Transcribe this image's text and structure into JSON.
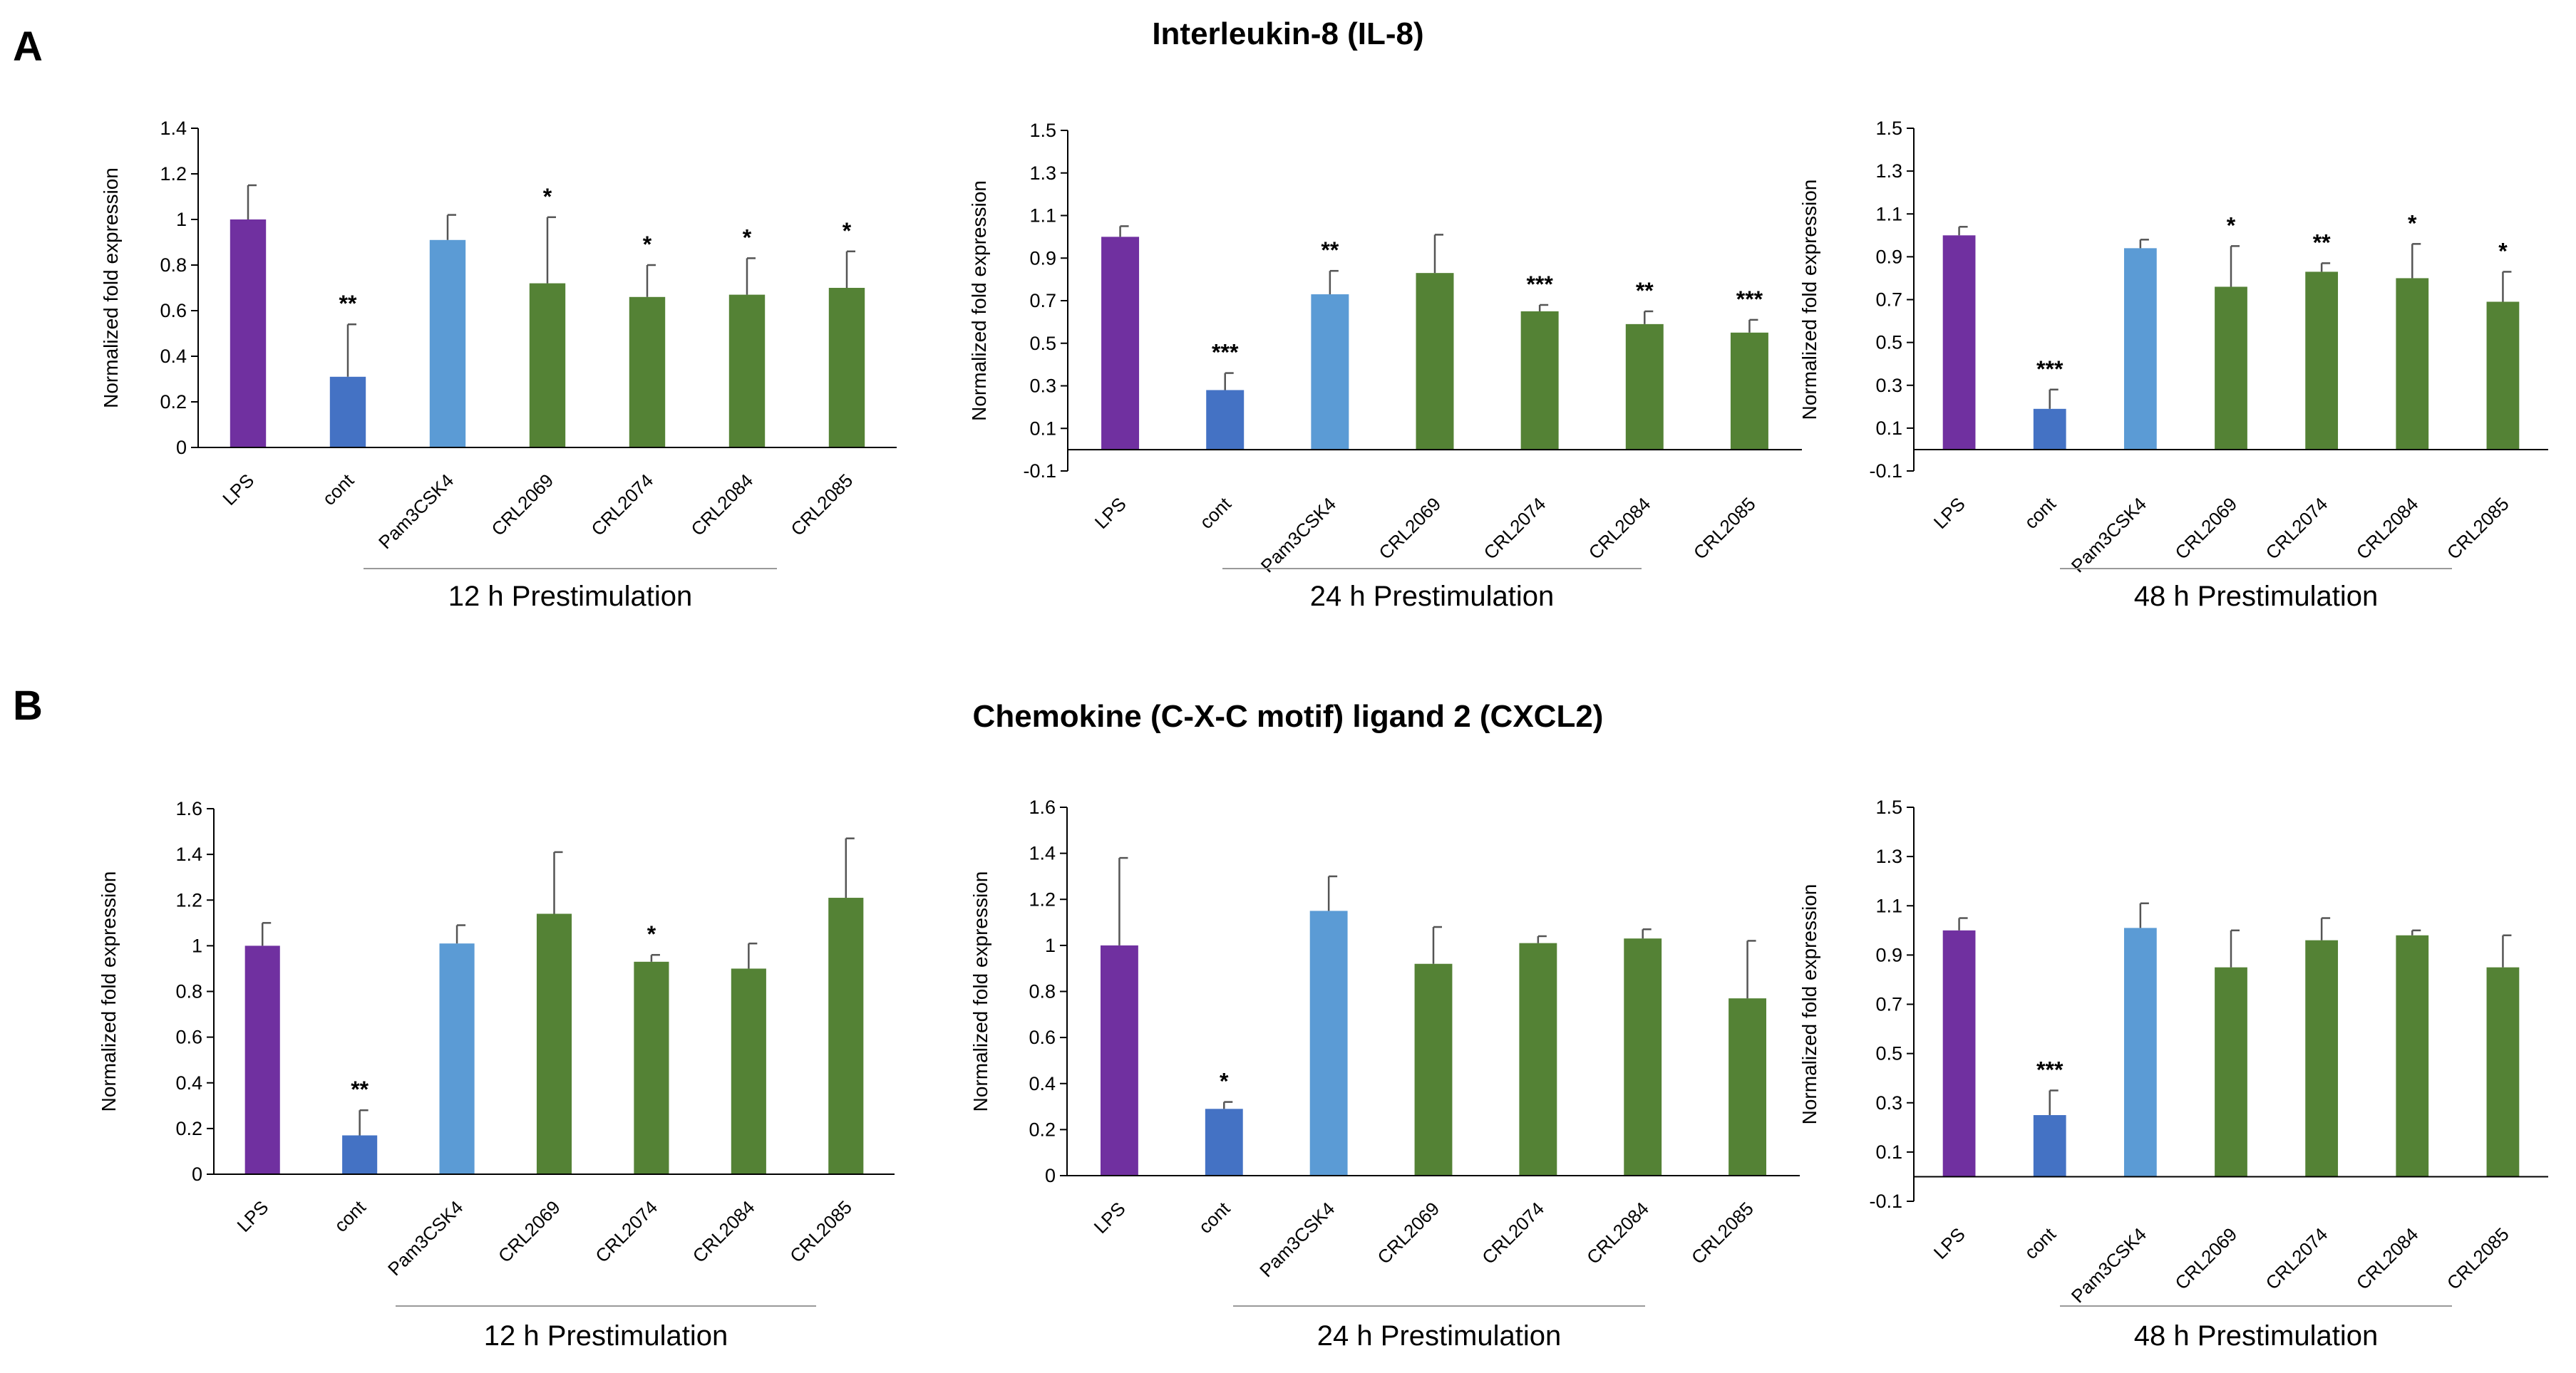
{
  "panels": {
    "A": {
      "letter": "A",
      "title": "Interleukin-8 (IL-8)"
    },
    "B": {
      "letter": "B",
      "title": "Chemokine (C-X-C motif) ligand 2 (CXCL2)"
    }
  },
  "colors": {
    "purple": "#7030a0",
    "darkblue": "#4472c4",
    "lightblue": "#5b9bd5",
    "green": "#548235"
  },
  "chart_data": [
    {
      "type": "bar",
      "panel": "A",
      "categories": [
        "LPS",
        "cont",
        "Pam3CSK4",
        "CRL2069",
        "CRL2074",
        "CRL2084",
        "CRL2085"
      ],
      "values": [
        1.0,
        0.31,
        0.91,
        0.72,
        0.66,
        0.67,
        0.7
      ],
      "errors": [
        0.15,
        0.23,
        0.11,
        0.29,
        0.14,
        0.16,
        0.16
      ],
      "significance": [
        "",
        "**",
        "",
        "*",
        "*",
        "*",
        "*"
      ],
      "ylabel": "Normalized fold expression",
      "xlabel": "12 h Prestimulation",
      "ylim": [
        0,
        1.4
      ],
      "yticks": [
        0,
        0.2,
        0.4,
        0.6,
        0.8,
        1,
        1.2,
        1.4
      ],
      "ytick_labels": [
        "0",
        "0.2",
        "0.4",
        "0.6",
        "0.8",
        "1",
        "1.2",
        "1.4"
      ]
    },
    {
      "type": "bar",
      "panel": "A",
      "categories": [
        "LPS",
        "cont",
        "Pam3CSK4",
        "CRL2069",
        "CRL2074",
        "CRL2084",
        "CRL2085"
      ],
      "values": [
        1.0,
        0.28,
        0.73,
        0.83,
        0.65,
        0.59,
        0.55
      ],
      "errors": [
        0.05,
        0.08,
        0.11,
        0.18,
        0.03,
        0.06,
        0.06
      ],
      "significance": [
        "",
        "***",
        "**",
        "",
        "***",
        "**",
        "***"
      ],
      "ylabel": "Normalized fold expression",
      "xlabel": "24 h Prestimulation",
      "ylim": [
        -0.1,
        1.5
      ],
      "yticks": [
        -0.1,
        0.1,
        0.3,
        0.5,
        0.7,
        0.9,
        1.1,
        1.3,
        1.5
      ],
      "ytick_labels": [
        "-0.1",
        "0.1",
        "0.3",
        "0.5",
        "0.7",
        "0.9",
        "1.1",
        "1.3",
        "1.5"
      ]
    },
    {
      "type": "bar",
      "panel": "A",
      "categories": [
        "LPS",
        "cont",
        "Pam3CSK4",
        "CRL2069",
        "CRL2074",
        "CRL2084",
        "CRL2085"
      ],
      "values": [
        1.0,
        0.19,
        0.94,
        0.76,
        0.83,
        0.8,
        0.69
      ],
      "errors": [
        0.04,
        0.09,
        0.04,
        0.19,
        0.04,
        0.16,
        0.14
      ],
      "significance": [
        "",
        "***",
        "",
        "*",
        "**",
        "*",
        "*"
      ],
      "ylabel": "Normalized fold expression",
      "xlabel": "48 h Prestimulation",
      "ylim": [
        -0.1,
        1.5
      ],
      "yticks": [
        -0.1,
        0.1,
        0.3,
        0.5,
        0.7,
        0.9,
        1.1,
        1.3,
        1.5
      ],
      "ytick_labels": [
        "-0.1",
        "0.1",
        "0.3",
        "0.5",
        "0.7",
        "0.9",
        "1.1",
        "1.3",
        "1.5"
      ]
    },
    {
      "type": "bar",
      "panel": "B",
      "categories": [
        "LPS",
        "cont",
        "Pam3CSK4",
        "CRL2069",
        "CRL2074",
        "CRL2084",
        "CRL2085"
      ],
      "values": [
        1.0,
        0.17,
        1.01,
        1.14,
        0.93,
        0.9,
        1.21
      ],
      "errors": [
        0.1,
        0.11,
        0.08,
        0.27,
        0.03,
        0.11,
        0.26
      ],
      "significance": [
        "",
        "**",
        "",
        "",
        "*",
        "",
        ""
      ],
      "ylabel": "Normalized fold expression",
      "xlabel": "12 h Prestimulation",
      "ylim": [
        0,
        1.6
      ],
      "yticks": [
        0,
        0.2,
        0.4,
        0.6,
        0.8,
        1,
        1.2,
        1.4,
        1.6
      ],
      "ytick_labels": [
        "0",
        "0.2",
        "0.4",
        "0.6",
        "0.8",
        "1",
        "1.2",
        "1.4",
        "1.6"
      ]
    },
    {
      "type": "bar",
      "panel": "B",
      "categories": [
        "LPS",
        "cont",
        "Pam3CSK4",
        "CRL2069",
        "CRL2074",
        "CRL2084",
        "CRL2085"
      ],
      "values": [
        1.0,
        0.29,
        1.15,
        0.92,
        1.01,
        1.03,
        0.77
      ],
      "errors": [
        0.38,
        0.03,
        0.15,
        0.16,
        0.03,
        0.04,
        0.25
      ],
      "significance": [
        "",
        "*",
        "",
        "",
        "",
        "",
        ""
      ],
      "ylabel": "Normalized fold expression",
      "xlabel": "24 h Prestimulation",
      "ylim": [
        0,
        1.6
      ],
      "yticks": [
        0,
        0.2,
        0.4,
        0.6,
        0.8,
        1,
        1.2,
        1.4,
        1.6
      ],
      "ytick_labels": [
        "0",
        "0.2",
        "0.4",
        "0.6",
        "0.8",
        "1",
        "1.2",
        "1.4",
        "1.6"
      ]
    },
    {
      "type": "bar",
      "panel": "B",
      "categories": [
        "LPS",
        "cont",
        "Pam3CSK4",
        "CRL2069",
        "CRL2074",
        "CRL2084",
        "CRL2085"
      ],
      "values": [
        1.0,
        0.25,
        1.01,
        0.85,
        0.96,
        0.98,
        0.85
      ],
      "errors": [
        0.05,
        0.1,
        0.1,
        0.15,
        0.09,
        0.02,
        0.13
      ],
      "significance": [
        "",
        "***",
        "",
        "",
        "",
        "",
        ""
      ],
      "ylabel": "Normalized fold expression",
      "xlabel": "48 h Prestimulation",
      "ylim": [
        -0.1,
        1.5
      ],
      "yticks": [
        -0.1,
        0.1,
        0.3,
        0.5,
        0.7,
        0.9,
        1.1,
        1.3,
        1.5
      ],
      "ytick_labels": [
        "-0.1",
        "0.1",
        "0.3",
        "0.5",
        "0.7",
        "0.9",
        "1.1",
        "1.3",
        "1.5"
      ]
    }
  ]
}
